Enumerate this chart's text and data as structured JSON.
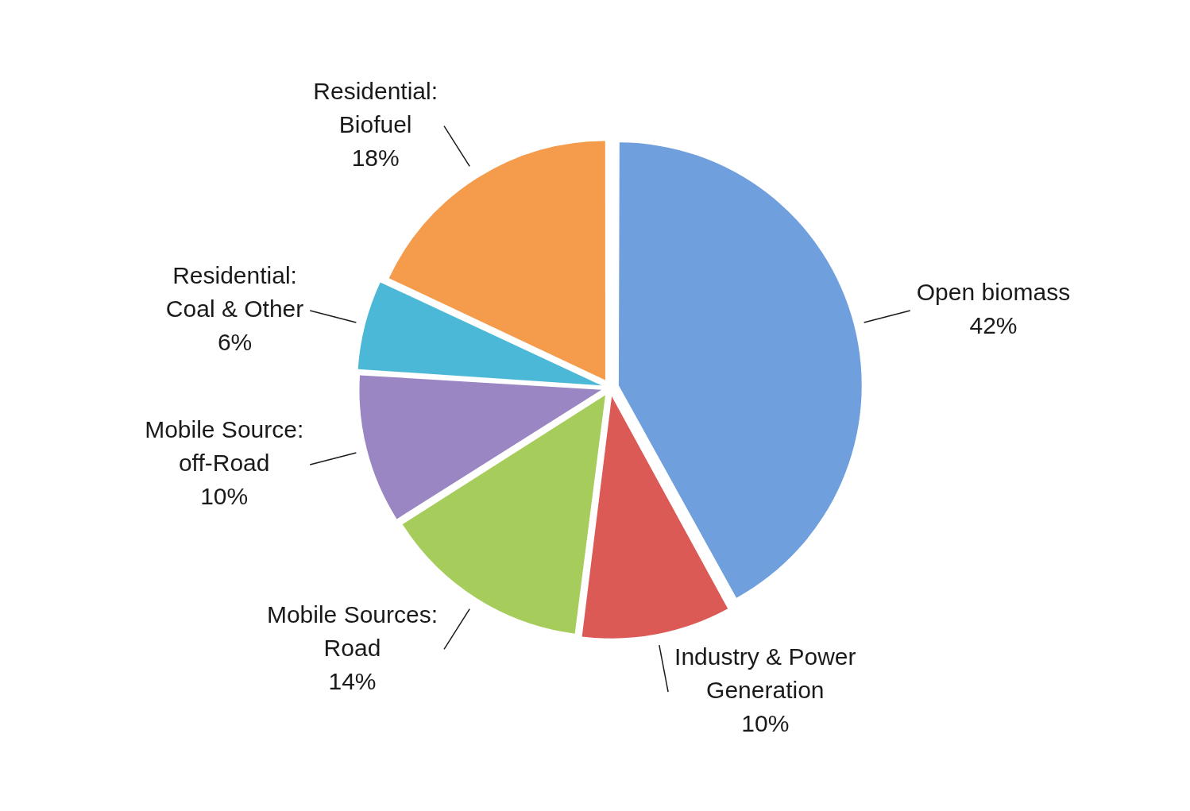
{
  "chart_data": {
    "type": "pie",
    "categories": [
      "Open biomass",
      "Industry & Power Generation",
      "Mobile Sources: Road",
      "Mobile Source: off-Road",
      "Residential: Coal & Other",
      "Residential: Biofuel"
    ],
    "values": [
      42,
      10,
      14,
      10,
      6,
      18
    ],
    "value_labels": [
      "42%",
      "10%",
      "14%",
      "10%",
      "6%",
      "18%"
    ],
    "colors": [
      "#6f9fdc",
      "#dc5a55",
      "#a6cc5c",
      "#9a86c2",
      "#4cb8d8",
      "#f49b4c"
    ],
    "legend": false
  }
}
